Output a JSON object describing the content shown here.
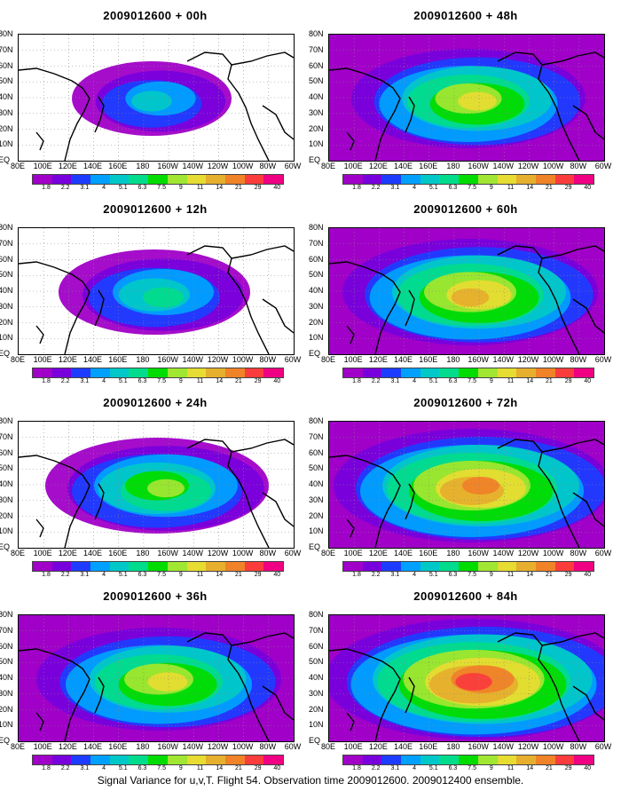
{
  "caption": "Signal Variance for u,v,T. Flight 54. Observation time 2009012600. 2009012400 ensemble.",
  "panels": [
    {
      "title": "2009012600 + 00h",
      "col": 0,
      "row": 0,
      "intensity": 0.2
    },
    {
      "title": "2009012600 + 12h",
      "col": 0,
      "row": 1,
      "intensity": 0.35
    },
    {
      "title": "2009012600 + 24h",
      "col": 0,
      "row": 2,
      "intensity": 0.5
    },
    {
      "title": "2009012600 + 36h",
      "col": 0,
      "row": 3,
      "intensity": 0.6
    },
    {
      "title": "2009012600 + 48h",
      "col": 1,
      "row": 0,
      "intensity": 0.55
    },
    {
      "title": "2009012600 + 60h",
      "col": 1,
      "row": 1,
      "intensity": 0.65
    },
    {
      "title": "2009012600 + 72h",
      "col": 1,
      "row": 2,
      "intensity": 0.75
    },
    {
      "title": "2009012600 + 84h",
      "col": 1,
      "row": 3,
      "intensity": 0.85
    }
  ],
  "lat_labels": [
    "80N",
    "70N",
    "60N",
    "50N",
    "40N",
    "30N",
    "20N",
    "10N",
    "EQ"
  ],
  "lon_labels": [
    "80E",
    "100E",
    "120E",
    "140E",
    "160E",
    "180",
    "160W",
    "140W",
    "120W",
    "100W",
    "80W",
    "60W"
  ],
  "colorbar": {
    "labels": [
      "1.8",
      "2.2",
      "3.1",
      "4",
      "5.1",
      "6.3",
      "7.5",
      "9",
      "11",
      "14",
      "21",
      "29",
      "40"
    ],
    "colors": [
      "#a000c8",
      "#7800dc",
      "#1e3cff",
      "#00a0ff",
      "#00c8c8",
      "#00dc8c",
      "#00dc00",
      "#a0e632",
      "#e6dc32",
      "#e6af2d",
      "#f08228",
      "#fa3c3c",
      "#f00082"
    ]
  }
}
